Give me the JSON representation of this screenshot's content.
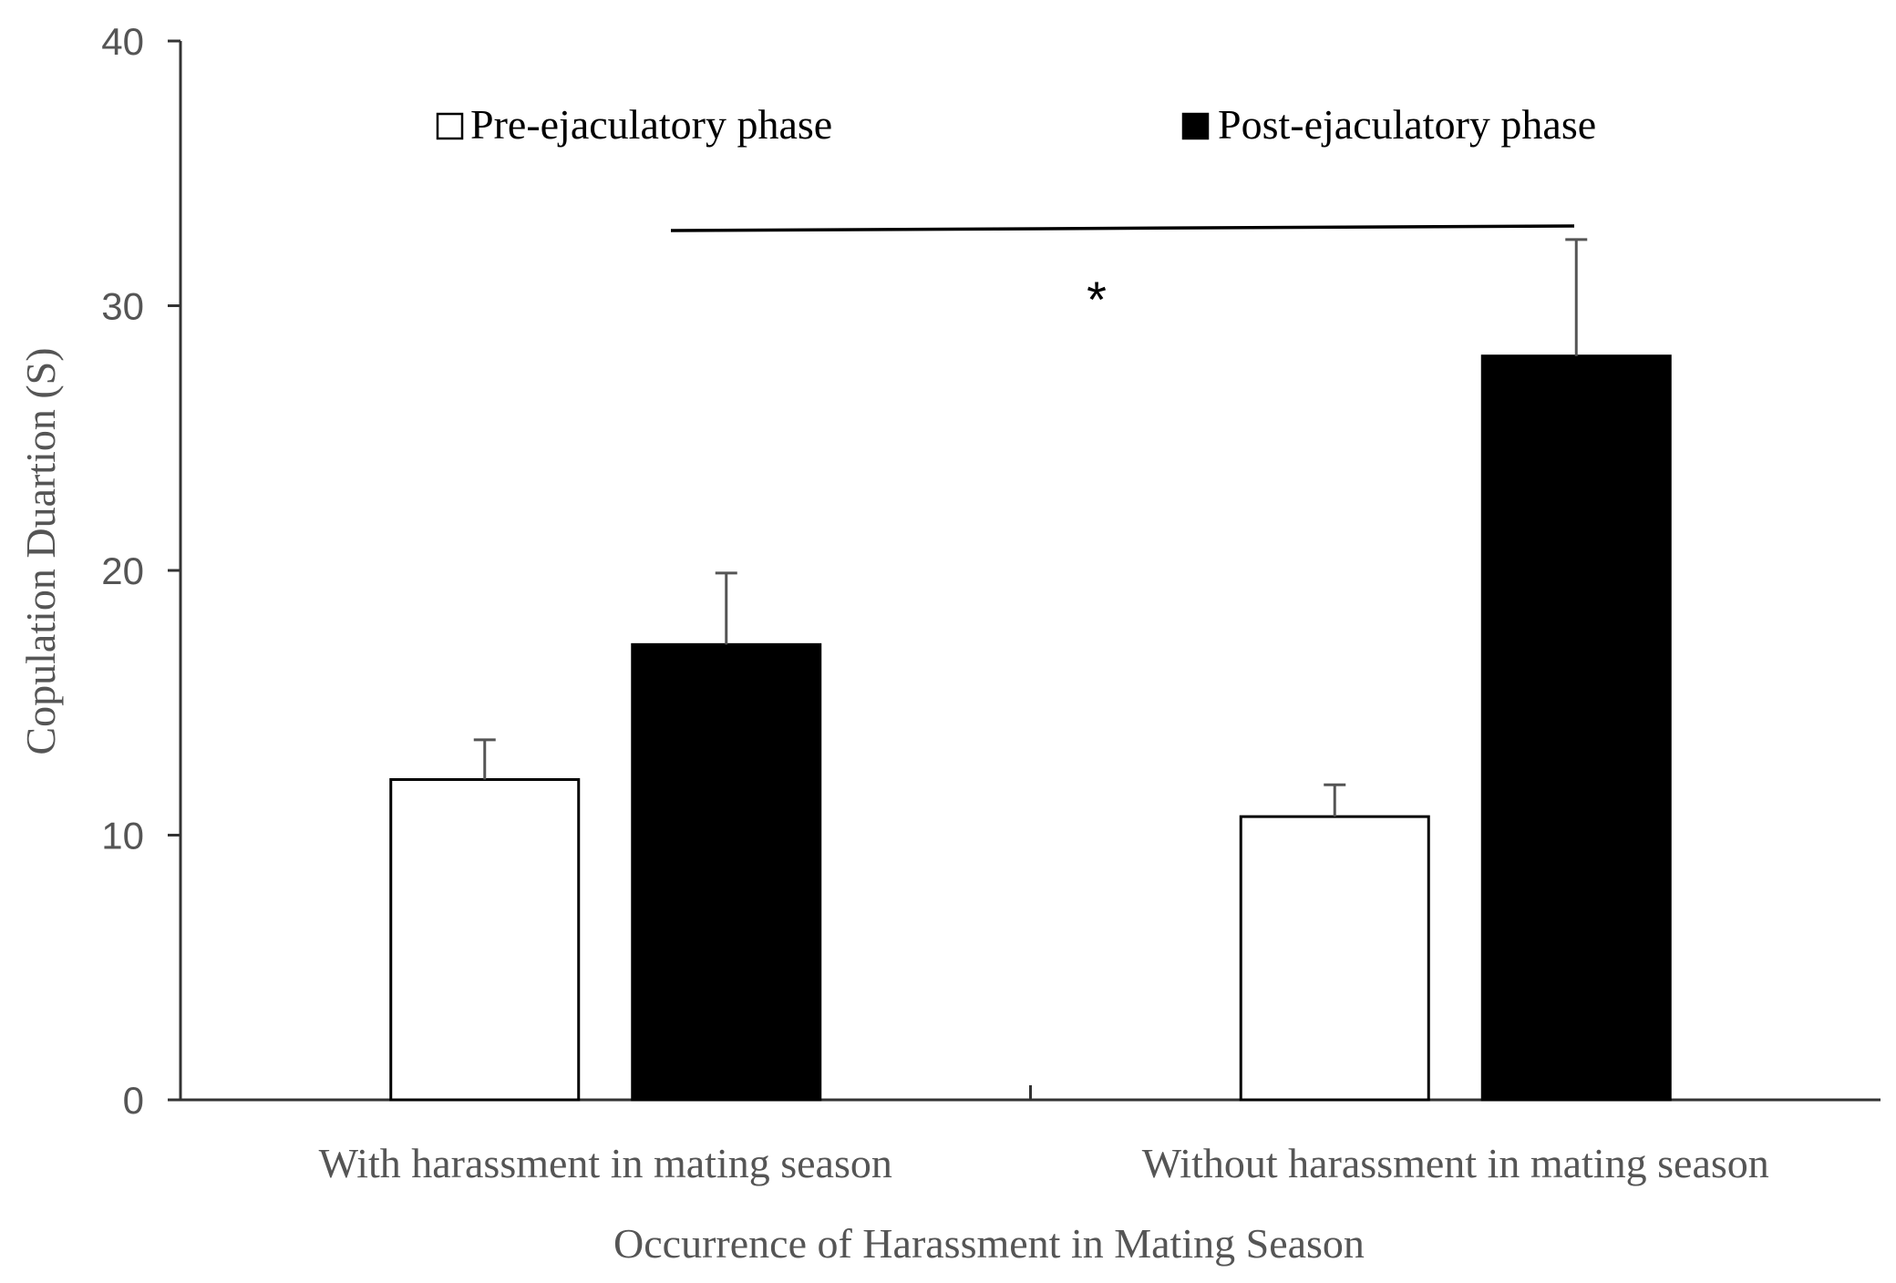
{
  "chart_data": {
    "type": "bar",
    "title": "",
    "xlabel": "Occurrence of Harassment in Mating Season",
    "ylabel": "Copulation Duartion (S)",
    "ylim": [
      0,
      40
    ],
    "yticks": [
      "0",
      "10",
      "20",
      "30",
      "40"
    ],
    "categories": [
      "With harassment in mating season",
      "Without harassment in mating season"
    ],
    "series": [
      {
        "name": "Pre-ejaculatory phase",
        "values": [
          12.1,
          10.7
        ],
        "errors": [
          1.5,
          1.2
        ],
        "color": "#ffffff"
      },
      {
        "name": "Post-ejaculatory phase",
        "values": [
          17.2,
          28.1
        ],
        "errors": [
          2.7,
          4.4
        ],
        "color": "#000000"
      }
    ],
    "legend_position": "top",
    "grid": false,
    "significance": {
      "label": "*",
      "between": "Post-ejaculatory phase across categories"
    }
  }
}
